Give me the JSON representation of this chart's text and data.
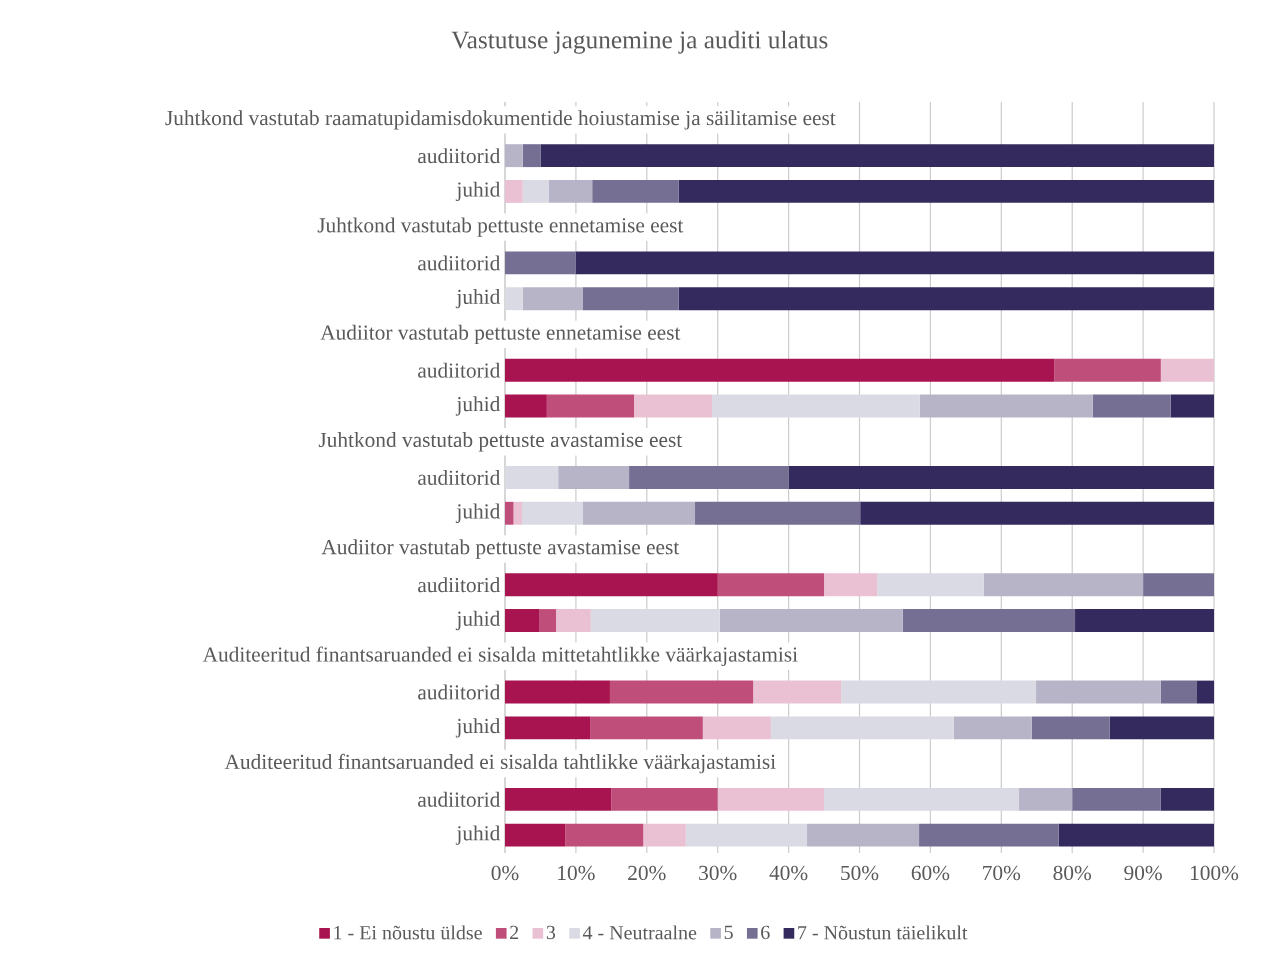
{
  "chart_data": {
    "type": "bar",
    "orientation": "horizontal",
    "stacked": true,
    "title": "Vastutuse jagunemine ja auditi ulatus",
    "categories": [
      "Juhtkond vastutab raamatupidamisdokumentide  hoiustamise ja säilitamise eest",
      "audiitorid",
      "juhid",
      "Juhtkond vastutab pettuste ennetamise eest",
      "audiitorid",
      "juhid",
      "Audiitor vastutab pettuste ennetamise eest",
      "audiitorid",
      "juhid",
      "Juhtkond vastutab pettuste avastamise eest",
      "audiitorid",
      "juhid",
      "Audiitor vastutab pettuste avastamise eest",
      "audiitorid",
      "juhid",
      "Auditeeritud finantsaruanded ei sisalda mittetahtlikke väärkajastamisi",
      "audiitorid",
      "juhid",
      "Auditeeritud finantsaruanded ei sisalda tahtlikke väärkajastamisi",
      "audiitorid",
      "juhid"
    ],
    "series": [
      {
        "name": "1 - Ei nõustu üldse",
        "color": "#a8144f",
        "values": [
          null,
          0,
          0,
          null,
          0,
          0,
          null,
          77.5,
          5.9,
          null,
          0,
          0,
          null,
          30,
          4.8,
          null,
          14.8,
          12,
          null,
          15,
          8.5
        ]
      },
      {
        "name": "2",
        "color": "#c04e7b",
        "values": [
          null,
          0,
          0,
          null,
          0,
          0,
          null,
          15,
          12.3,
          null,
          0,
          1.2,
          null,
          15,
          2.4,
          null,
          20.2,
          15.9,
          null,
          15,
          11
        ]
      },
      {
        "name": "3",
        "color": "#e9c1d3",
        "values": [
          null,
          0,
          2.5,
          null,
          0,
          0,
          null,
          7.5,
          11,
          null,
          0,
          1.2,
          null,
          7.5,
          4.9,
          null,
          12.4,
          9.6,
          null,
          15,
          6
        ]
      },
      {
        "name": "4 - Neutraalne",
        "color": "#dadae4",
        "values": [
          null,
          0,
          3.7,
          null,
          0,
          2.5,
          null,
          0,
          29.3,
          null,
          7.5,
          8.6,
          null,
          15,
          18.2,
          null,
          27.5,
          25.8,
          null,
          27.5,
          17.1
        ]
      },
      {
        "name": "5",
        "color": "#b7b4c8",
        "values": [
          null,
          2.5,
          6.1,
          null,
          0,
          8.5,
          null,
          0,
          24.4,
          null,
          10,
          15.8,
          null,
          22.5,
          25.8,
          null,
          17.6,
          11,
          null,
          7.5,
          15.8
        ]
      },
      {
        "name": "6",
        "color": "#756f93",
        "values": [
          null,
          2.5,
          12.2,
          null,
          10,
          13.5,
          null,
          0,
          11,
          null,
          22.5,
          23.3,
          null,
          10,
          24.3,
          null,
          5.1,
          11,
          null,
          12.5,
          19.7
        ]
      },
      {
        "name": "7 - Nõustun täielikult",
        "color": "#352a5e",
        "values": [
          null,
          95,
          75.5,
          null,
          90,
          75.5,
          null,
          0,
          6.1,
          null,
          60,
          49.9,
          null,
          0,
          19.6,
          null,
          2.4,
          14.7,
          null,
          7.5,
          21.9
        ]
      }
    ],
    "xlim": [
      0,
      100
    ],
    "xticks": [
      {
        "value": 0,
        "label": "0%"
      },
      {
        "value": 10,
        "label": "10%"
      },
      {
        "value": 20,
        "label": "20%"
      },
      {
        "value": 30,
        "label": "30%"
      },
      {
        "value": 40,
        "label": "40%"
      },
      {
        "value": 50,
        "label": "50%"
      },
      {
        "value": 60,
        "label": "60%"
      },
      {
        "value": 70,
        "label": "70%"
      },
      {
        "value": 80,
        "label": "80%"
      },
      {
        "value": 90,
        "label": "90%"
      },
      {
        "value": 100,
        "label": "100%"
      }
    ],
    "grid": "x",
    "legend": "bottom"
  }
}
